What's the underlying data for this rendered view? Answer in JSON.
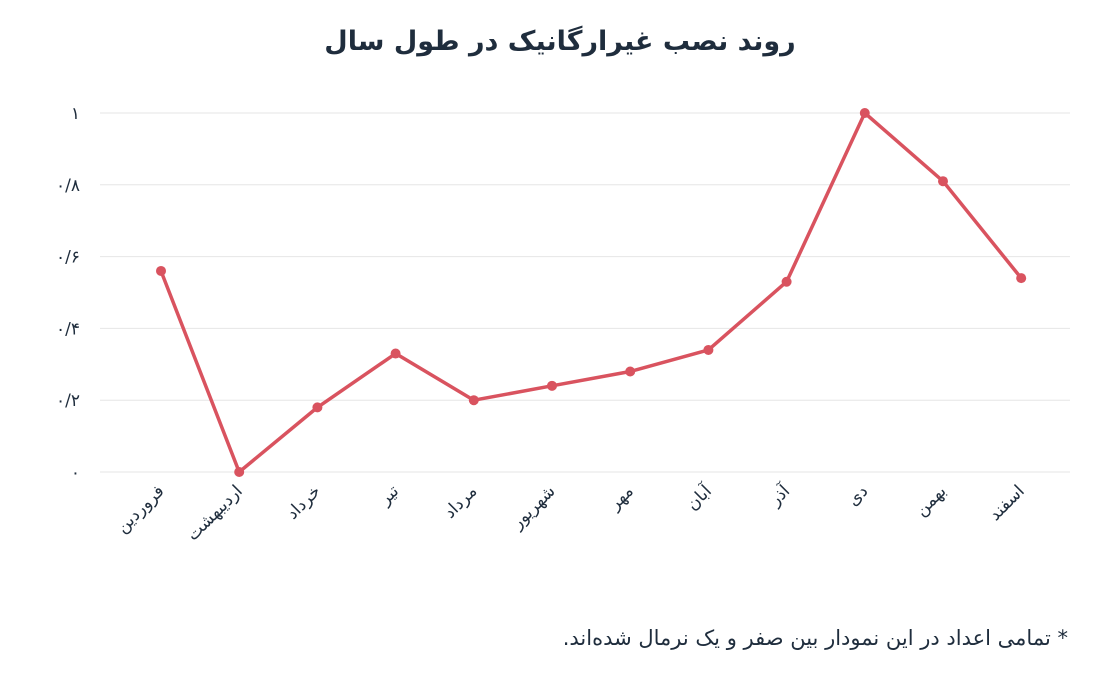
{
  "chart_data": {
    "type": "line",
    "title": "روند نصب غیرارگانیک در طول سال",
    "categories": [
      "فروردین",
      "اردیبهشت",
      "خرداد",
      "تیر",
      "مرداد",
      "شهریور",
      "مهر",
      "آبان",
      "آذر",
      "دی",
      "بهمن",
      "اسفند"
    ],
    "values": [
      0.56,
      0.0,
      0.18,
      0.33,
      0.2,
      0.24,
      0.28,
      0.34,
      0.53,
      1.0,
      0.81,
      0.54
    ],
    "ylim": [
      0,
      1
    ],
    "yticks": [
      0,
      0.2,
      0.4,
      0.6,
      0.8,
      1
    ],
    "ytick_labels": [
      "۰",
      "۰/۲",
      "۰/۴",
      "۰/۶",
      "۰/۸",
      "۱"
    ],
    "xlabel": "",
    "ylabel": "",
    "grid": true,
    "legend": "none",
    "line_color": "#d9535f",
    "grid_color": "#e6e6e6"
  },
  "footnote": "* تمامی اعداد در این نمودار بین صفر و یک نرمال شده‌اند."
}
